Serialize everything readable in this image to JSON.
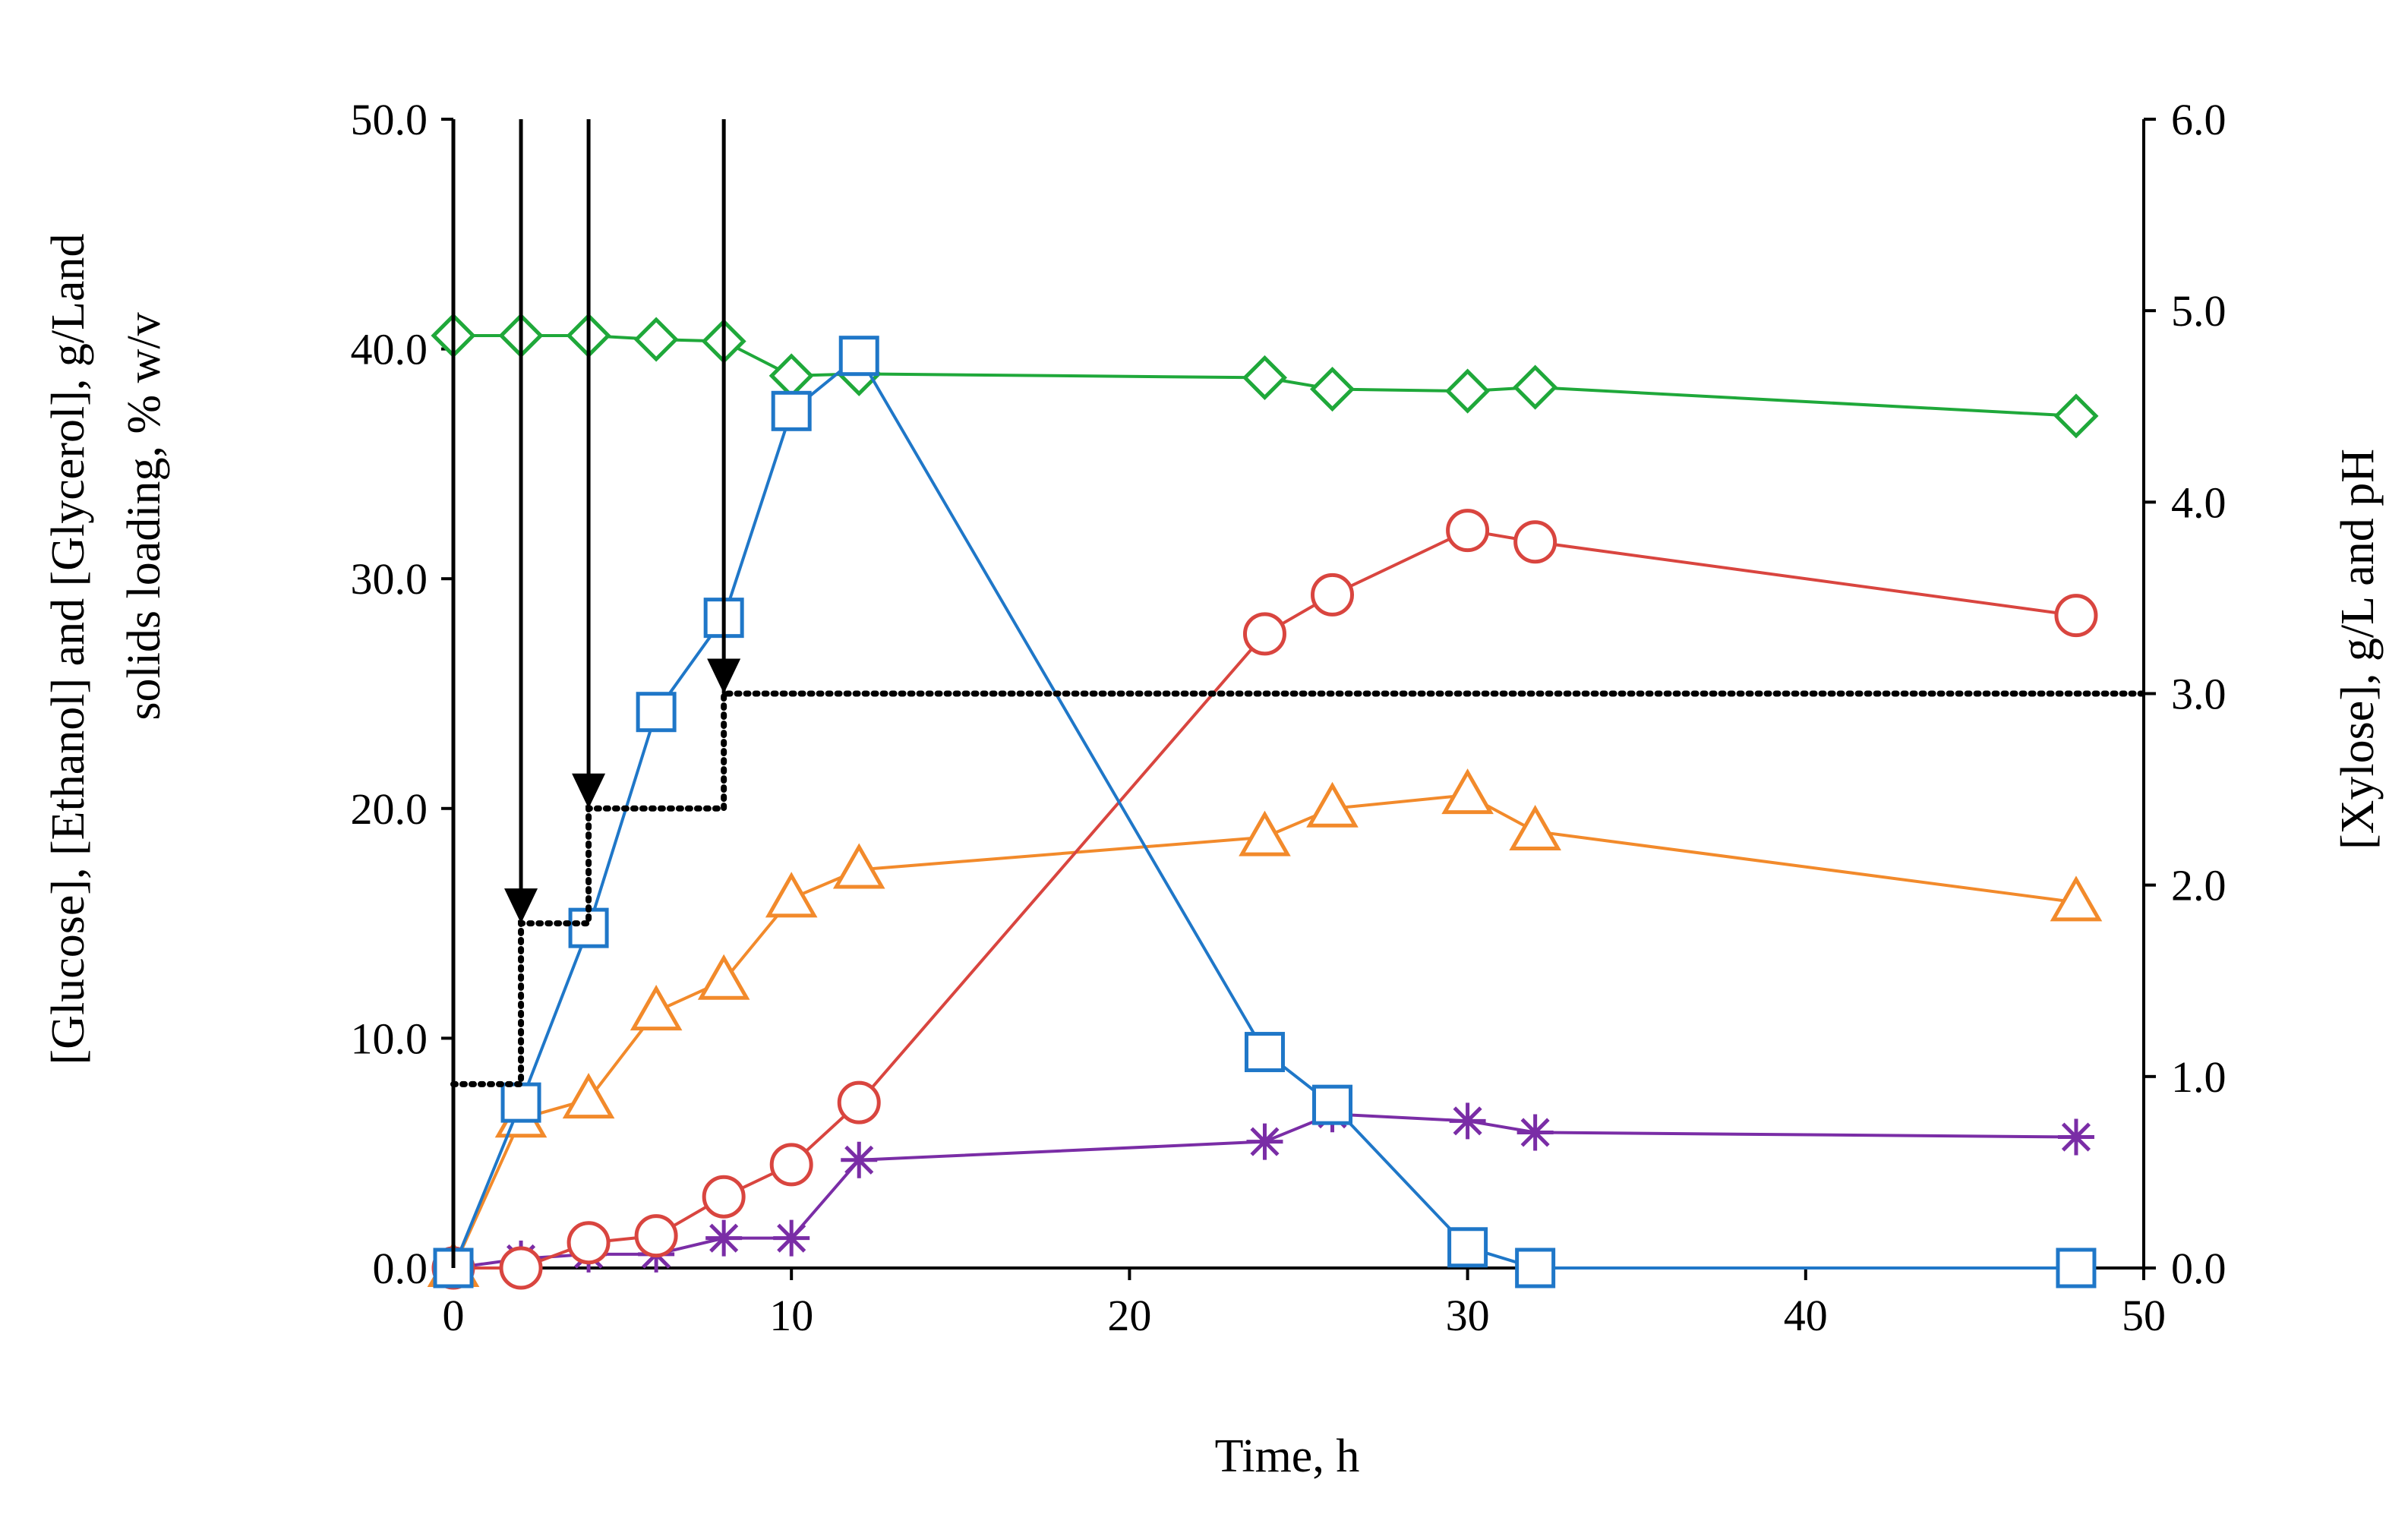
{
  "chart_data": {
    "type": "line",
    "title": "",
    "xlabel": "Time, h",
    "ylabel_left_line1": "[Glucose], [Ethanol] and [Glycerol], g/Land",
    "ylabel_left_line2": "solids loading, % w/v",
    "ylabel_right": "[Xylose], g/L and pH",
    "xlim": [
      0,
      50
    ],
    "ylim_left": [
      0,
      50
    ],
    "ylim_right": [
      0,
      6
    ],
    "x_ticks": [
      0,
      10,
      20,
      30,
      40,
      50
    ],
    "x_tick_labels": [
      "0",
      "10",
      "20",
      "30",
      "40",
      "50"
    ],
    "y_left_ticks": [
      0,
      10,
      20,
      30,
      40,
      50
    ],
    "y_left_tick_labels": [
      "0.0",
      "10.0",
      "20.0",
      "30.0",
      "40.0",
      "50.0"
    ],
    "y_right_ticks": [
      0,
      1,
      2,
      3,
      4,
      5,
      6
    ],
    "y_right_tick_labels": [
      "0.0",
      "1.0",
      "2.0",
      "3.0",
      "4.0",
      "5.0",
      "6.0"
    ],
    "series": [
      {
        "name": "Glucose",
        "marker": "square",
        "color": "#1f77c8",
        "axis": "left",
        "x": [
          0,
          2,
          4,
          6,
          8,
          10,
          12,
          24,
          26,
          30,
          32,
          48
        ],
        "y": [
          0,
          7.2,
          14.8,
          24.2,
          28.3,
          37.3,
          39.7,
          9.4,
          7.1,
          0.9,
          0,
          0
        ]
      },
      {
        "name": "Ethanol",
        "marker": "circle",
        "color": "#d9453f",
        "axis": "left",
        "x": [
          0,
          2,
          4,
          6,
          8,
          10,
          12,
          24,
          26,
          30,
          32,
          48
        ],
        "y": [
          0,
          0,
          1.1,
          1.4,
          3.1,
          4.5,
          7.2,
          27.6,
          29.3,
          32.1,
          31.6,
          28.4
        ]
      },
      {
        "name": "Glycerol",
        "marker": "asterisk",
        "color": "#7a2da6",
        "axis": "left",
        "x": [
          0,
          2,
          4,
          6,
          8,
          10,
          12,
          24,
          26,
          30,
          32,
          48
        ],
        "y": [
          0,
          0.4,
          0.6,
          0.6,
          1.3,
          1.3,
          4.7,
          5.5,
          6.7,
          6.4,
          5.9,
          5.7
        ]
      },
      {
        "name": "Xylose",
        "marker": "triangle",
        "color": "#f28a2b",
        "axis": "right",
        "x": [
          0,
          2,
          4,
          6,
          8,
          10,
          12,
          24,
          26,
          30,
          32,
          48
        ],
        "y": [
          0,
          0.78,
          0.88,
          1.34,
          1.5,
          1.93,
          2.08,
          2.25,
          2.4,
          2.47,
          2.28,
          1.91
        ]
      },
      {
        "name": "pH",
        "marker": "diamond",
        "color": "#1fa83a",
        "axis": "right",
        "x": [
          0,
          2,
          4,
          6,
          8,
          10,
          12,
          24,
          26,
          30,
          32,
          48
        ],
        "y": [
          4.87,
          4.87,
          4.87,
          4.85,
          4.84,
          4.66,
          4.67,
          4.65,
          4.59,
          4.58,
          4.6,
          4.45
        ]
      }
    ],
    "solids_loading": {
      "name": "Solids loading",
      "style": "dotted",
      "color": "#000000",
      "axis": "left",
      "x": [
        0,
        2,
        2,
        4,
        4,
        8,
        8,
        50
      ],
      "y": [
        8,
        8,
        15,
        15,
        20,
        20,
        25,
        25
      ]
    },
    "feeding_arrows": {
      "x": [
        0,
        2,
        4,
        8
      ],
      "tip_y": [
        0,
        15,
        20,
        25
      ]
    }
  }
}
